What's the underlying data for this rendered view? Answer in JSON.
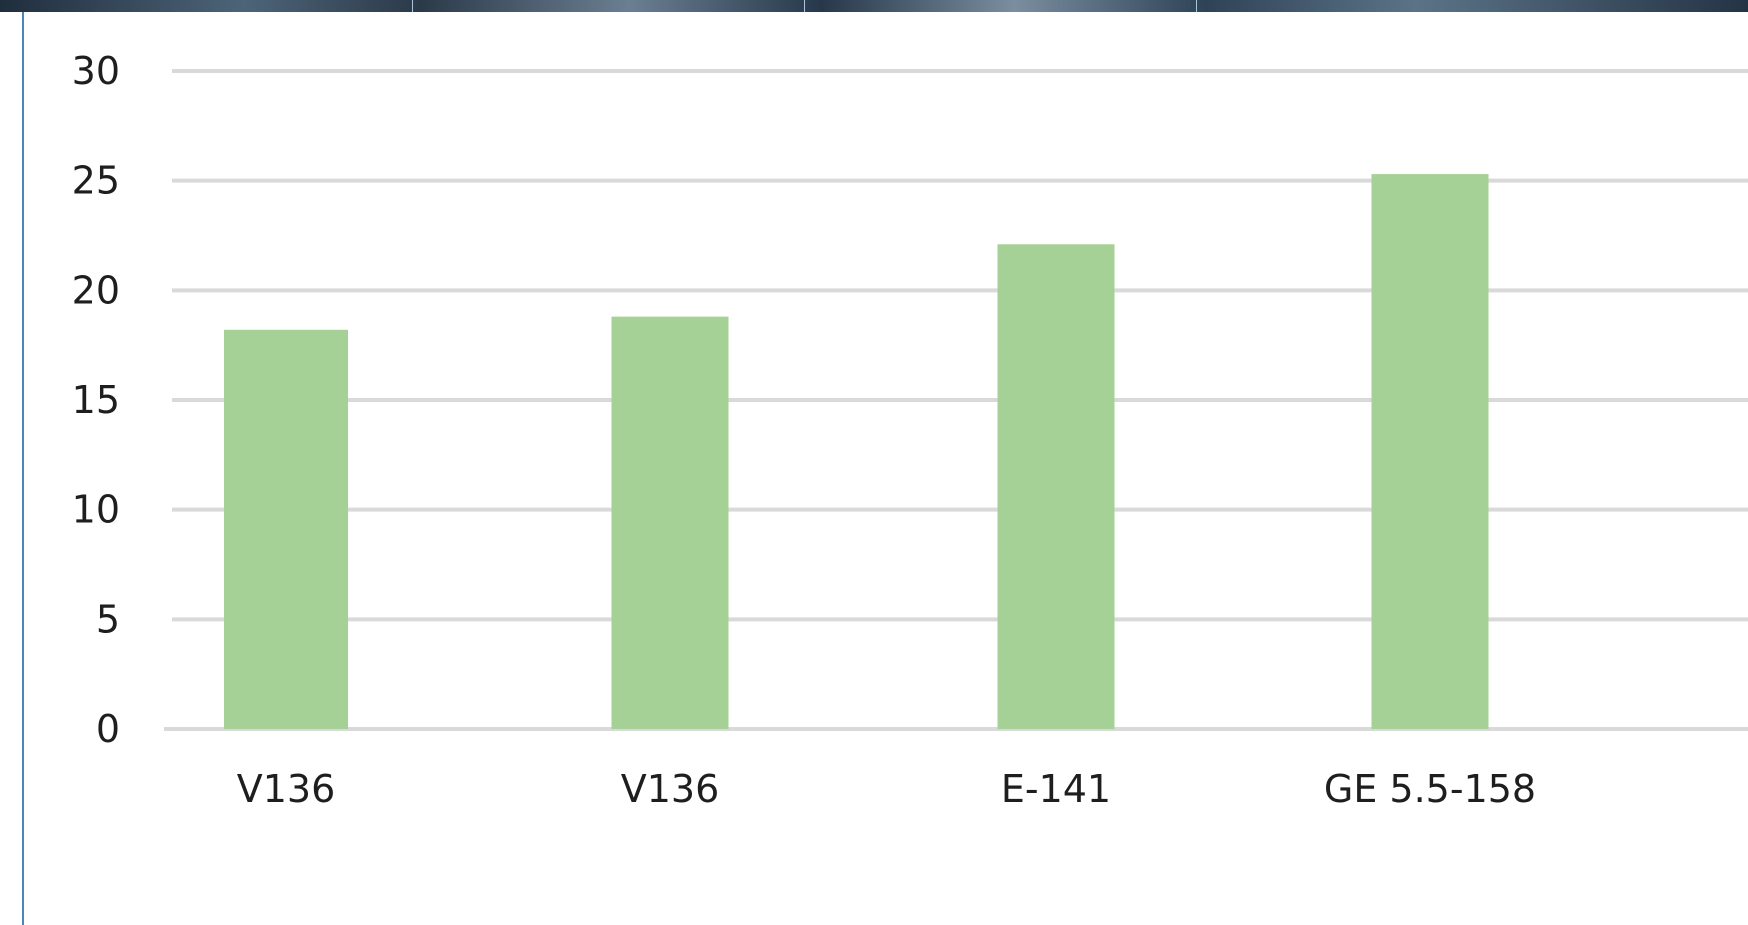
{
  "chart_data": {
    "type": "bar",
    "categories": [
      "V136",
      "V136",
      "E-141",
      "GE 5.5-158"
    ],
    "values": [
      18.2,
      18.8,
      22.1,
      25.3
    ],
    "title": "",
    "xlabel": "",
    "ylabel": "",
    "ylim": [
      0,
      30
    ],
    "yticks": [
      "0",
      "5",
      "10",
      "15",
      "20",
      "25",
      "30"
    ],
    "grid": true,
    "bar_color": "#a6d196",
    "grid_color": "#d9d9d9"
  }
}
